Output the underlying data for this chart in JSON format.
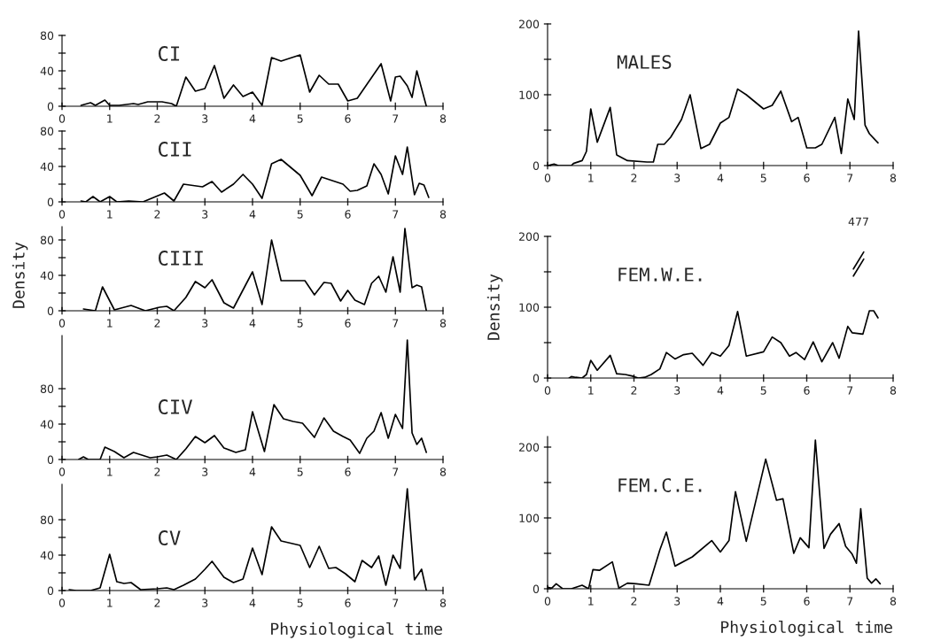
{
  "chart_data": [
    {
      "type": "line",
      "title": "CI",
      "color": "#000000",
      "xlim": [
        0,
        8
      ],
      "xticks": [
        0,
        1,
        2,
        3,
        4,
        5,
        6,
        7,
        8
      ],
      "ylim": [
        0,
        80
      ],
      "yticks": [
        0,
        {
          "value": 20,
          "label": null
        },
        40,
        {
          "value": 60,
          "label": null
        },
        80
      ],
      "x": [
        0.4,
        0.6,
        0.7,
        0.9,
        1.0,
        1.2,
        1.5,
        1.6,
        1.8,
        2.1,
        2.3,
        2.4,
        2.6,
        2.8,
        3.0,
        3.2,
        3.4,
        3.6,
        3.8,
        4.0,
        4.2,
        4.4,
        4.6,
        5.0,
        5.2,
        5.4,
        5.6,
        5.8,
        6.0,
        6.2,
        6.7,
        6.9,
        7.0,
        7.1,
        7.25,
        7.35,
        7.45,
        7.65
      ],
      "values": [
        1,
        4,
        1,
        7,
        1,
        1,
        3,
        2,
        5,
        5,
        3,
        0,
        33,
        17,
        20,
        46,
        9,
        24,
        11,
        16,
        1,
        55,
        51,
        58,
        16,
        35,
        25,
        25,
        6,
        9,
        48,
        6,
        33,
        34,
        23,
        10,
        40,
        0
      ]
    },
    {
      "type": "line",
      "title": "CII",
      "color": "#000000",
      "xlim": [
        0,
        8
      ],
      "xticks": [
        0,
        1,
        2,
        3,
        4,
        5,
        6,
        7,
        8
      ],
      "ylim": [
        0,
        80
      ],
      "yticks": [
        0,
        {
          "value": 20,
          "label": null
        },
        40,
        {
          "value": 60,
          "label": null
        },
        80
      ],
      "x": [
        0.4,
        0.5,
        0.65,
        0.8,
        1.0,
        1.15,
        1.4,
        1.7,
        2.15,
        2.35,
        2.55,
        2.95,
        3.15,
        3.35,
        3.6,
        3.8,
        4.0,
        4.2,
        4.4,
        4.6,
        5.0,
        5.25,
        5.45,
        5.9,
        6.05,
        6.2,
        6.4,
        6.55,
        6.7,
        6.85,
        7.0,
        7.15,
        7.25,
        7.4,
        7.5,
        7.6,
        7.7
      ],
      "values": [
        1,
        0,
        6,
        0,
        6,
        0,
        1,
        0,
        10,
        1,
        20,
        17,
        23,
        11,
        20,
        31,
        20,
        4,
        43,
        48,
        30,
        7,
        28,
        20,
        12,
        13,
        18,
        43,
        31,
        9,
        52,
        31,
        62,
        8,
        21,
        19,
        5
      ]
    },
    {
      "type": "line",
      "title": "CIII",
      "ylabel": "Density",
      "color": "#000000",
      "xlim": [
        0,
        8
      ],
      "xticks": [
        0,
        1,
        2,
        3,
        4,
        5,
        6,
        7,
        8
      ],
      "ylim": [
        0,
        95
      ],
      "yticks": [
        0,
        {
          "value": 20,
          "label": null
        },
        40,
        {
          "value": 60,
          "label": null
        },
        80
      ],
      "x": [
        0.45,
        0.7,
        0.85,
        1.1,
        1.45,
        1.75,
        2.05,
        2.2,
        2.35,
        2.6,
        2.8,
        3.0,
        3.15,
        3.4,
        3.6,
        4.0,
        4.2,
        4.4,
        4.6,
        5.1,
        5.3,
        5.5,
        5.65,
        5.85,
        6.0,
        6.15,
        6.35,
        6.5,
        6.65,
        6.8,
        6.95,
        7.1,
        7.2,
        7.35,
        7.45,
        7.55,
        7.65
      ],
      "values": [
        2,
        0,
        27,
        1,
        6,
        0,
        4,
        5,
        0,
        15,
        33,
        26,
        35,
        9,
        3,
        44,
        7,
        80,
        34,
        34,
        18,
        32,
        31,
        11,
        23,
        12,
        7,
        31,
        39,
        21,
        61,
        21,
        93,
        26,
        29,
        27,
        0
      ]
    },
    {
      "type": "line",
      "title": "CIV",
      "color": "#000000",
      "xlim": [
        0,
        8
      ],
      "xticks": [
        0,
        1,
        2,
        3,
        4,
        5,
        6,
        7,
        8
      ],
      "ylim": [
        0,
        140
      ],
      "yticks": [
        0,
        {
          "value": 20,
          "label": null
        },
        40,
        {
          "value": 60,
          "label": null
        },
        80
      ],
      "x": [
        0.35,
        0.45,
        0.55,
        0.8,
        0.9,
        1.1,
        1.3,
        1.5,
        1.85,
        2.0,
        2.2,
        2.4,
        2.6,
        2.8,
        3.0,
        3.2,
        3.4,
        3.65,
        3.85,
        4.0,
        4.25,
        4.45,
        4.65,
        4.85,
        5.05,
        5.3,
        5.5,
        5.7,
        5.9,
        6.05,
        6.25,
        6.4,
        6.55,
        6.7,
        6.85,
        7.0,
        7.15,
        7.25,
        7.35,
        7.45,
        7.55,
        7.65
      ],
      "values": [
        0,
        3,
        0,
        0,
        14,
        9,
        2,
        8,
        2,
        3,
        5,
        0,
        12,
        26,
        19,
        27,
        13,
        8,
        11,
        54,
        9,
        62,
        46,
        43,
        41,
        25,
        47,
        32,
        26,
        22,
        7,
        24,
        32,
        53,
        24,
        51,
        35,
        135,
        30,
        17,
        24,
        8
      ]
    },
    {
      "type": "line",
      "title": "CV",
      "xlabel": "Physiological time",
      "color": "#000000",
      "xlim": [
        0,
        8
      ],
      "xticks": [
        0,
        1,
        2,
        3,
        4,
        5,
        6,
        7,
        8
      ],
      "ylim": [
        0,
        120
      ],
      "yticks": [
        0,
        {
          "value": 20,
          "label": null
        },
        40,
        {
          "value": 60,
          "label": null
        },
        80
      ],
      "x": [
        0.15,
        0.3,
        0.6,
        0.8,
        1.0,
        1.15,
        1.3,
        1.45,
        1.65,
        2.0,
        2.2,
        2.35,
        2.55,
        2.8,
        3.0,
        3.15,
        3.4,
        3.6,
        3.8,
        4.0,
        4.2,
        4.4,
        4.6,
        5.0,
        5.2,
        5.4,
        5.6,
        5.75,
        5.95,
        6.15,
        6.3,
        6.5,
        6.65,
        6.8,
        6.95,
        7.1,
        7.25,
        7.4,
        7.55,
        7.65
      ],
      "values": [
        1,
        0,
        0,
        3,
        41,
        10,
        8,
        9,
        1,
        2,
        3,
        1,
        6,
        13,
        24,
        33,
        15,
        9,
        13,
        48,
        18,
        72,
        56,
        51,
        26,
        50,
        25,
        26,
        19,
        10,
        34,
        26,
        39,
        6,
        40,
        25,
        115,
        12,
        24,
        0
      ]
    },
    {
      "type": "line",
      "title": "MALES",
      "color": "#000000",
      "xlim": [
        0,
        8
      ],
      "xticks": [
        0,
        1,
        2,
        3,
        4,
        5,
        6,
        7,
        8
      ],
      "ylim": [
        0,
        200
      ],
      "yticks": [
        0,
        {
          "value": 50,
          "label": null
        },
        100,
        {
          "value": 150,
          "label": null
        },
        200
      ],
      "x": [
        0,
        0.15,
        0.25,
        0.55,
        0.6,
        0.8,
        0.9,
        1.0,
        1.15,
        1.45,
        1.6,
        1.85,
        2.3,
        2.45,
        2.55,
        2.7,
        2.85,
        3.1,
        3.3,
        3.55,
        3.75,
        4.0,
        4.2,
        4.4,
        4.6,
        5.0,
        5.2,
        5.4,
        5.65,
        5.8,
        6.0,
        6.2,
        6.35,
        6.65,
        6.8,
        6.95,
        7.1,
        7.2,
        7.35,
        7.45,
        7.65
      ],
      "values": [
        0,
        2,
        0,
        0,
        3,
        7,
        20,
        80,
        33,
        82,
        15,
        7,
        5,
        5,
        30,
        30,
        40,
        65,
        100,
        24,
        30,
        60,
        68,
        108,
        100,
        80,
        85,
        105,
        62,
        68,
        25,
        25,
        30,
        68,
        17,
        94,
        65,
        190,
        57,
        45,
        32
      ]
    },
    {
      "type": "line",
      "title": "FEM.W.E.",
      "ylabel": "Density",
      "color": "#000000",
      "xlim": [
        0,
        8
      ],
      "xticks": [
        0,
        1,
        2,
        3,
        4,
        5,
        6,
        7,
        8
      ],
      "ylim": [
        0,
        200
      ],
      "yticks": [
        0,
        {
          "value": 50,
          "label": null
        },
        100,
        {
          "value": 150,
          "label": null
        },
        200
      ],
      "annotations": [
        "477"
      ],
      "x": [
        0.5,
        0.55,
        0.65,
        0.8,
        0.9,
        1.0,
        1.15,
        1.45,
        1.6,
        1.8,
        1.95,
        2.1,
        2.25,
        2.4,
        2.6,
        2.75,
        2.95,
        3.15,
        3.35,
        3.6,
        3.8,
        4.0,
        4.2,
        4.4,
        4.6,
        5.0,
        5.2,
        5.4,
        5.6,
        5.75,
        5.95,
        6.15,
        6.35,
        6.6,
        6.75,
        6.95,
        7.05,
        7.2,
        7.3,
        7.45,
        7.55,
        7.65
      ],
      "values": [
        0,
        2,
        1,
        0,
        5,
        25,
        11,
        32,
        6,
        5,
        3,
        0,
        1,
        5,
        13,
        36,
        27,
        33,
        35,
        18,
        36,
        31,
        46,
        94,
        31,
        37,
        58,
        50,
        31,
        36,
        26,
        51,
        23,
        50,
        28,
        73,
        64,
        null,
        62,
        95,
        95,
        85
      ]
    },
    {
      "type": "line",
      "title": "FEM.C.E.",
      "xlabel": "Physiological time",
      "color": "#000000",
      "xlim": [
        0,
        8
      ],
      "xticks": [
        0,
        1,
        2,
        3,
        4,
        5,
        6,
        7,
        8
      ],
      "ylim": [
        0,
        215
      ],
      "yticks": [
        0,
        {
          "value": 50,
          "label": null
        },
        100,
        {
          "value": 150,
          "label": null
        },
        200
      ],
      "x": [
        0,
        0.1,
        0.2,
        0.35,
        0.55,
        0.8,
        0.95,
        1.05,
        1.2,
        1.5,
        1.65,
        1.85,
        2.05,
        2.35,
        2.6,
        2.75,
        2.95,
        3.35,
        3.8,
        4.0,
        4.2,
        4.35,
        4.6,
        5.05,
        5.3,
        5.45,
        5.7,
        5.85,
        6.05,
        6.2,
        6.4,
        6.55,
        6.75,
        6.9,
        7.05,
        7.15,
        7.25,
        7.4,
        7.5,
        7.6,
        7.7
      ],
      "values": [
        2,
        1,
        7,
        0,
        0,
        5,
        0,
        27,
        26,
        38,
        1,
        8,
        7,
        5,
        55,
        80,
        32,
        45,
        68,
        52,
        68,
        137,
        67,
        183,
        125,
        127,
        50,
        72,
        58,
        210,
        57,
        77,
        92,
        60,
        49,
        36,
        113,
        15,
        8,
        14,
        7
      ]
    }
  ]
}
